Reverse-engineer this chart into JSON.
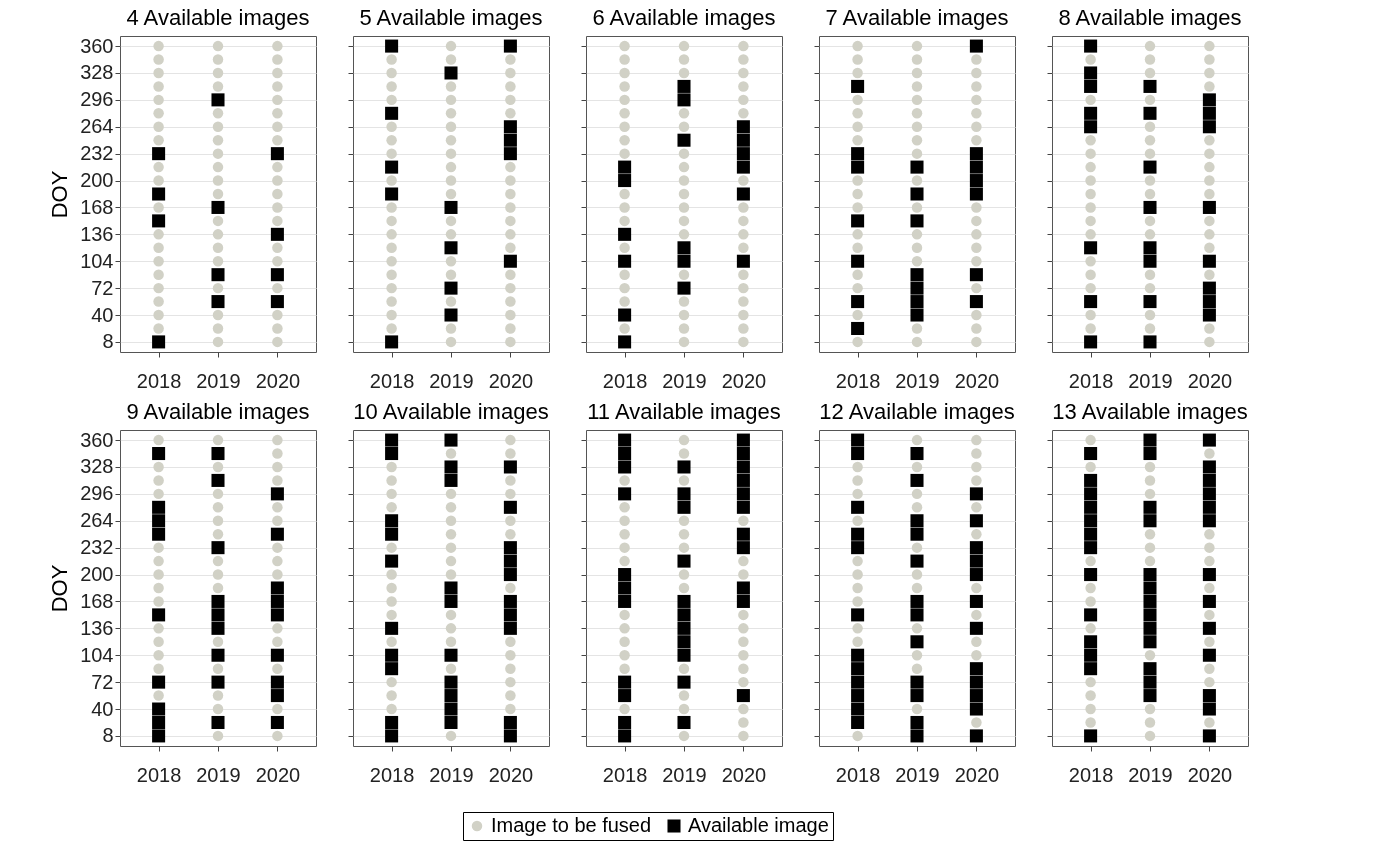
{
  "chart_data": [
    {
      "type": "scatter",
      "title": "4 Available images",
      "ylabel": "DOY",
      "legend": "bottom",
      "xlim": [
        2017.35,
        2020.65
      ],
      "xticks": [
        2018,
        2019,
        2020
      ],
      "ylim": [
        -4,
        372
      ],
      "yticks": [
        8,
        40,
        72,
        104,
        136,
        168,
        200,
        232,
        264,
        296,
        328,
        360
      ],
      "grid": "y",
      "series": [
        {
          "name": "Image to be fused",
          "color": "#d1d1c6",
          "marker": "circle",
          "x": [
            2018,
            2018,
            2018,
            2018,
            2018,
            2018,
            2018,
            2018,
            2018,
            2018,
            2018,
            2018,
            2018,
            2018,
            2018,
            2018,
            2018,
            2018,
            2018,
            2019,
            2019,
            2019,
            2019,
            2019,
            2019,
            2019,
            2019,
            2019,
            2019,
            2019,
            2019,
            2019,
            2019,
            2019,
            2019,
            2019,
            2019,
            2019,
            2020,
            2020,
            2020,
            2020,
            2020,
            2020,
            2020,
            2020,
            2020,
            2020,
            2020,
            2020,
            2020,
            2020,
            2020,
            2020,
            2020,
            2020,
            2020
          ],
          "values": [
            360,
            344,
            328,
            312,
            296,
            280,
            264,
            248,
            216,
            200,
            168,
            136,
            120,
            104,
            88,
            72,
            56,
            40,
            24,
            360,
            344,
            328,
            312,
            280,
            264,
            248,
            232,
            216,
            200,
            184,
            152,
            136,
            120,
            104,
            72,
            40,
            24,
            8,
            360,
            344,
            328,
            312,
            296,
            280,
            264,
            248,
            216,
            200,
            184,
            168,
            152,
            120,
            104,
            72,
            40,
            24,
            8
          ]
        },
        {
          "name": "Available image",
          "color": "#000000",
          "marker": "square",
          "x": [
            2018,
            2018,
            2018,
            2018,
            2019,
            2019,
            2019,
            2019,
            2020,
            2020,
            2020,
            2020
          ],
          "values": [
            232,
            184,
            152,
            8,
            296,
            168,
            88,
            56,
            232,
            136,
            88,
            56
          ]
        }
      ]
    },
    {
      "type": "scatter",
      "title": "5 Available images",
      "tick_labels": "x",
      "legend": "bottom",
      "xlim": [
        2017.35,
        2020.65
      ],
      "xticks": [
        2018,
        2019,
        2020
      ],
      "ylim": [
        -4,
        372
      ],
      "yticks": [
        8,
        40,
        72,
        104,
        136,
        168,
        200,
        232,
        264,
        296,
        328,
        360
      ],
      "grid": "y",
      "series": [
        {
          "name": "Image to be fused",
          "color": "#d1d1c6",
          "marker": "circle",
          "x": [
            2018,
            2018,
            2018,
            2018,
            2018,
            2018,
            2018,
            2018,
            2018,
            2018,
            2018,
            2018,
            2018,
            2018,
            2018,
            2018,
            2018,
            2018,
            2019,
            2019,
            2019,
            2019,
            2019,
            2019,
            2019,
            2019,
            2019,
            2019,
            2019,
            2019,
            2019,
            2019,
            2019,
            2019,
            2019,
            2019,
            2020,
            2020,
            2020,
            2020,
            2020,
            2020,
            2020,
            2020,
            2020,
            2020,
            2020,
            2020,
            2020,
            2020,
            2020,
            2020,
            2020,
            2020
          ],
          "values": [
            344,
            328,
            312,
            296,
            264,
            248,
            232,
            200,
            168,
            152,
            136,
            120,
            104,
            88,
            72,
            56,
            40,
            24,
            360,
            344,
            312,
            296,
            280,
            264,
            248,
            232,
            216,
            200,
            184,
            152,
            136,
            104,
            88,
            56,
            24,
            8,
            344,
            328,
            312,
            296,
            280,
            216,
            200,
            184,
            168,
            152,
            136,
            120,
            88,
            72,
            56,
            40,
            24,
            8
          ]
        },
        {
          "name": "Available image",
          "color": "#000000",
          "marker": "square",
          "x": [
            2018,
            2018,
            2018,
            2018,
            2018,
            2019,
            2019,
            2019,
            2019,
            2019,
            2020,
            2020,
            2020,
            2020,
            2020
          ],
          "values": [
            360,
            280,
            216,
            184,
            8,
            328,
            168,
            120,
            72,
            40,
            360,
            264,
            248,
            232,
            104
          ]
        }
      ]
    },
    {
      "type": "scatter",
      "title": "6 Available images",
      "tick_labels": "x",
      "legend": "bottom",
      "xlim": [
        2017.35,
        2020.65
      ],
      "xticks": [
        2018,
        2019,
        2020
      ],
      "ylim": [
        -4,
        372
      ],
      "yticks": [
        8,
        40,
        72,
        104,
        136,
        168,
        200,
        232,
        264,
        296,
        328,
        360
      ],
      "grid": "y",
      "series": [
        {
          "name": "Image to be fused",
          "color": "#d1d1c6",
          "marker": "circle",
          "x": [
            2018,
            2018,
            2018,
            2018,
            2018,
            2018,
            2018,
            2018,
            2018,
            2018,
            2018,
            2018,
            2018,
            2018,
            2018,
            2018,
            2018,
            2019,
            2019,
            2019,
            2019,
            2019,
            2019,
            2019,
            2019,
            2019,
            2019,
            2019,
            2019,
            2019,
            2019,
            2019,
            2019,
            2019,
            2020,
            2020,
            2020,
            2020,
            2020,
            2020,
            2020,
            2020,
            2020,
            2020,
            2020,
            2020,
            2020,
            2020,
            2020,
            2020,
            2020
          ],
          "values": [
            360,
            344,
            328,
            312,
            296,
            280,
            264,
            248,
            232,
            184,
            168,
            152,
            120,
            88,
            72,
            56,
            24,
            360,
            344,
            328,
            280,
            264,
            232,
            216,
            200,
            184,
            168,
            152,
            136,
            88,
            56,
            40,
            24,
            8,
            360,
            344,
            328,
            312,
            296,
            280,
            200,
            168,
            152,
            136,
            120,
            88,
            72,
            56,
            40,
            24,
            8
          ]
        },
        {
          "name": "Available image",
          "color": "#000000",
          "marker": "square",
          "x": [
            2018,
            2018,
            2018,
            2018,
            2018,
            2018,
            2019,
            2019,
            2019,
            2019,
            2019,
            2019,
            2020,
            2020,
            2020,
            2020,
            2020,
            2020
          ],
          "values": [
            216,
            200,
            136,
            104,
            40,
            8,
            312,
            296,
            248,
            120,
            104,
            72,
            264,
            248,
            232,
            216,
            184,
            104
          ]
        }
      ]
    },
    {
      "type": "scatter",
      "title": "7 Available images",
      "tick_labels": "x",
      "legend": "bottom",
      "xlim": [
        2017.35,
        2020.65
      ],
      "xticks": [
        2018,
        2019,
        2020
      ],
      "ylim": [
        -4,
        372
      ],
      "yticks": [
        8,
        40,
        72,
        104,
        136,
        168,
        200,
        232,
        264,
        296,
        328,
        360
      ],
      "grid": "y",
      "series": [
        {
          "name": "Image to be fused",
          "color": "#d1d1c6",
          "marker": "circle",
          "x": [
            2018,
            2018,
            2018,
            2018,
            2018,
            2018,
            2018,
            2018,
            2018,
            2018,
            2018,
            2018,
            2018,
            2018,
            2018,
            2018,
            2019,
            2019,
            2019,
            2019,
            2019,
            2019,
            2019,
            2019,
            2019,
            2019,
            2019,
            2019,
            2019,
            2019,
            2019,
            2019,
            2020,
            2020,
            2020,
            2020,
            2020,
            2020,
            2020,
            2020,
            2020,
            2020,
            2020,
            2020,
            2020,
            2020,
            2020,
            2020
          ],
          "values": [
            360,
            344,
            328,
            296,
            280,
            264,
            248,
            200,
            184,
            168,
            136,
            120,
            88,
            72,
            40,
            8,
            360,
            344,
            328,
            312,
            296,
            280,
            264,
            248,
            232,
            200,
            168,
            136,
            120,
            104,
            24,
            8,
            344,
            328,
            312,
            296,
            280,
            264,
            248,
            168,
            152,
            136,
            120,
            104,
            72,
            40,
            24,
            8
          ]
        },
        {
          "name": "Available image",
          "color": "#000000",
          "marker": "square",
          "x": [
            2018,
            2018,
            2018,
            2018,
            2018,
            2018,
            2018,
            2019,
            2019,
            2019,
            2019,
            2019,
            2019,
            2019,
            2020,
            2020,
            2020,
            2020,
            2020,
            2020,
            2020
          ],
          "values": [
            312,
            232,
            216,
            152,
            104,
            56,
            24,
            216,
            184,
            152,
            88,
            72,
            56,
            40,
            360,
            232,
            216,
            200,
            184,
            88,
            56
          ]
        }
      ]
    },
    {
      "type": "scatter",
      "title": "8 Available images",
      "tick_labels": "x",
      "legend": "bottom",
      "xlim": [
        2017.35,
        2020.65
      ],
      "xticks": [
        2018,
        2019,
        2020
      ],
      "ylim": [
        -4,
        372
      ],
      "yticks": [
        8,
        40,
        72,
        104,
        136,
        168,
        200,
        232,
        264,
        296,
        328,
        360
      ],
      "grid": "y",
      "series": [
        {
          "name": "Image to be fused",
          "color": "#d1d1c6",
          "marker": "circle",
          "x": [
            2018,
            2018,
            2018,
            2018,
            2018,
            2018,
            2018,
            2018,
            2018,
            2018,
            2018,
            2018,
            2018,
            2018,
            2018,
            2019,
            2019,
            2019,
            2019,
            2019,
            2019,
            2019,
            2019,
            2019,
            2019,
            2019,
            2019,
            2019,
            2019,
            2019,
            2020,
            2020,
            2020,
            2020,
            2020,
            2020,
            2020,
            2020,
            2020,
            2020,
            2020,
            2020,
            2020,
            2020,
            2020
          ],
          "values": [
            344,
            296,
            248,
            232,
            216,
            200,
            184,
            168,
            152,
            136,
            104,
            88,
            72,
            40,
            24,
            360,
            344,
            328,
            296,
            264,
            248,
            232,
            200,
            184,
            152,
            136,
            88,
            72,
            40,
            24,
            360,
            344,
            328,
            312,
            248,
            232,
            216,
            200,
            184,
            152,
            136,
            120,
            88,
            24,
            8
          ]
        },
        {
          "name": "Available image",
          "color": "#000000",
          "marker": "square",
          "x": [
            2018,
            2018,
            2018,
            2018,
            2018,
            2018,
            2018,
            2018,
            2019,
            2019,
            2019,
            2019,
            2019,
            2019,
            2019,
            2019,
            2020,
            2020,
            2020,
            2020,
            2020,
            2020,
            2020,
            2020
          ],
          "values": [
            360,
            328,
            312,
            280,
            264,
            120,
            56,
            8,
            312,
            280,
            216,
            168,
            120,
            104,
            56,
            8,
            296,
            280,
            264,
            168,
            104,
            72,
            56,
            40
          ]
        }
      ]
    },
    {
      "type": "scatter",
      "title": "9 Available images",
      "ylabel": "DOY",
      "legend": "bottom",
      "xlim": [
        2017.35,
        2020.65
      ],
      "xticks": [
        2018,
        2019,
        2020
      ],
      "ylim": [
        -4,
        372
      ],
      "yticks": [
        8,
        40,
        72,
        104,
        136,
        168,
        200,
        232,
        264,
        296,
        328,
        360
      ],
      "grid": "y",
      "series": [
        {
          "name": "Image to be fused",
          "color": "#d1d1c6",
          "marker": "circle",
          "x": [
            2018,
            2018,
            2018,
            2018,
            2018,
            2018,
            2018,
            2018,
            2018,
            2018,
            2018,
            2018,
            2018,
            2018,
            2019,
            2019,
            2019,
            2019,
            2019,
            2019,
            2019,
            2019,
            2019,
            2019,
            2019,
            2019,
            2019,
            2019,
            2020,
            2020,
            2020,
            2020,
            2020,
            2020,
            2020,
            2020,
            2020,
            2020,
            2020,
            2020,
            2020,
            2020
          ],
          "values": [
            360,
            328,
            312,
            296,
            232,
            216,
            200,
            184,
            168,
            136,
            120,
            104,
            88,
            56,
            360,
            328,
            296,
            280,
            264,
            248,
            216,
            200,
            184,
            120,
            88,
            56,
            40,
            8,
            360,
            344,
            328,
            312,
            280,
            264,
            232,
            216,
            200,
            136,
            120,
            88,
            40,
            8
          ]
        },
        {
          "name": "Available image",
          "color": "#000000",
          "marker": "square",
          "x": [
            2018,
            2018,
            2018,
            2018,
            2018,
            2018,
            2018,
            2018,
            2018,
            2019,
            2019,
            2019,
            2019,
            2019,
            2019,
            2019,
            2019,
            2019,
            2020,
            2020,
            2020,
            2020,
            2020,
            2020,
            2020,
            2020,
            2020
          ],
          "values": [
            344,
            280,
            264,
            248,
            152,
            72,
            40,
            24,
            8,
            344,
            312,
            232,
            168,
            152,
            136,
            104,
            72,
            24,
            296,
            248,
            184,
            168,
            152,
            104,
            72,
            56,
            24
          ]
        }
      ]
    },
    {
      "type": "scatter",
      "title": "10 Available images",
      "tick_labels": "x",
      "legend": "bottom",
      "xlim": [
        2017.35,
        2020.65
      ],
      "xticks": [
        2018,
        2019,
        2020
      ],
      "ylim": [
        -4,
        372
      ],
      "yticks": [
        8,
        40,
        72,
        104,
        136,
        168,
        200,
        232,
        264,
        296,
        328,
        360
      ],
      "grid": "y",
      "series": [
        {
          "name": "Image to be fused",
          "color": "#d1d1c6",
          "marker": "circle",
          "x": [
            2018,
            2018,
            2018,
            2018,
            2018,
            2018,
            2018,
            2018,
            2018,
            2018,
            2018,
            2018,
            2018,
            2019,
            2019,
            2019,
            2019,
            2019,
            2019,
            2019,
            2019,
            2019,
            2019,
            2019,
            2019,
            2019,
            2020,
            2020,
            2020,
            2020,
            2020,
            2020,
            2020,
            2020,
            2020,
            2020,
            2020,
            2020,
            2020
          ],
          "values": [
            328,
            312,
            296,
            280,
            232,
            200,
            184,
            168,
            152,
            120,
            72,
            56,
            40,
            344,
            296,
            280,
            264,
            248,
            232,
            216,
            200,
            152,
            136,
            120,
            88,
            8,
            360,
            344,
            312,
            296,
            264,
            248,
            184,
            120,
            104,
            88,
            72,
            56,
            40
          ]
        },
        {
          "name": "Available image",
          "color": "#000000",
          "marker": "square",
          "x": [
            2018,
            2018,
            2018,
            2018,
            2018,
            2018,
            2018,
            2018,
            2018,
            2018,
            2019,
            2019,
            2019,
            2019,
            2019,
            2019,
            2019,
            2019,
            2019,
            2019,
            2020,
            2020,
            2020,
            2020,
            2020,
            2020,
            2020,
            2020,
            2020,
            2020
          ],
          "values": [
            360,
            344,
            264,
            248,
            216,
            136,
            104,
            88,
            24,
            8,
            360,
            328,
            312,
            184,
            168,
            104,
            72,
            56,
            40,
            24,
            328,
            280,
            232,
            216,
            200,
            168,
            152,
            136,
            24,
            8
          ]
        }
      ]
    },
    {
      "type": "scatter",
      "title": "11 Available images",
      "tick_labels": "x",
      "legend": "bottom",
      "xlim": [
        2017.35,
        2020.65
      ],
      "xticks": [
        2018,
        2019,
        2020
      ],
      "ylim": [
        -4,
        372
      ],
      "yticks": [
        8,
        40,
        72,
        104,
        136,
        168,
        200,
        232,
        264,
        296,
        328,
        360
      ],
      "grid": "y",
      "series": [
        {
          "name": "Image to be fused",
          "color": "#d1d1c6",
          "marker": "circle",
          "x": [
            2018,
            2018,
            2018,
            2018,
            2018,
            2018,
            2018,
            2018,
            2018,
            2018,
            2018,
            2018,
            2019,
            2019,
            2019,
            2019,
            2019,
            2019,
            2019,
            2019,
            2019,
            2019,
            2019,
            2019,
            2020,
            2020,
            2020,
            2020,
            2020,
            2020,
            2020,
            2020,
            2020,
            2020,
            2020,
            2020
          ],
          "values": [
            312,
            280,
            264,
            248,
            232,
            216,
            152,
            136,
            120,
            104,
            88,
            40,
            360,
            344,
            312,
            264,
            248,
            232,
            200,
            184,
            88,
            56,
            40,
            8,
            264,
            216,
            200,
            152,
            136,
            120,
            104,
            88,
            72,
            40,
            24,
            8
          ]
        },
        {
          "name": "Available image",
          "color": "#000000",
          "marker": "square",
          "x": [
            2018,
            2018,
            2018,
            2018,
            2018,
            2018,
            2018,
            2018,
            2018,
            2018,
            2018,
            2019,
            2019,
            2019,
            2019,
            2019,
            2019,
            2019,
            2019,
            2019,
            2019,
            2019,
            2020,
            2020,
            2020,
            2020,
            2020,
            2020,
            2020,
            2020,
            2020,
            2020,
            2020
          ],
          "values": [
            360,
            344,
            328,
            296,
            200,
            184,
            168,
            72,
            56,
            24,
            8,
            328,
            296,
            280,
            216,
            168,
            152,
            136,
            120,
            104,
            72,
            24,
            360,
            344,
            328,
            312,
            296,
            280,
            248,
            232,
            184,
            168,
            56
          ]
        }
      ]
    },
    {
      "type": "scatter",
      "title": "12 Available images",
      "tick_labels": "x",
      "legend": "bottom",
      "xlim": [
        2017.35,
        2020.65
      ],
      "xticks": [
        2018,
        2019,
        2020
      ],
      "ylim": [
        -4,
        372
      ],
      "yticks": [
        8,
        40,
        72,
        104,
        136,
        168,
        200,
        232,
        264,
        296,
        328,
        360
      ],
      "grid": "y",
      "series": [
        {
          "name": "Image to be fused",
          "color": "#d1d1c6",
          "marker": "circle",
          "x": [
            2018,
            2018,
            2018,
            2018,
            2018,
            2018,
            2018,
            2018,
            2018,
            2018,
            2018,
            2019,
            2019,
            2019,
            2019,
            2019,
            2019,
            2019,
            2019,
            2019,
            2019,
            2019,
            2020,
            2020,
            2020,
            2020,
            2020,
            2020,
            2020,
            2020,
            2020,
            2020,
            2020
          ],
          "values": [
            328,
            312,
            296,
            264,
            216,
            200,
            184,
            168,
            136,
            120,
            8,
            360,
            328,
            296,
            280,
            232,
            200,
            184,
            136,
            104,
            88,
            40,
            360,
            344,
            328,
            312,
            280,
            248,
            184,
            152,
            120,
            104,
            24
          ]
        },
        {
          "name": "Available image",
          "color": "#000000",
          "marker": "square",
          "x": [
            2018,
            2018,
            2018,
            2018,
            2018,
            2018,
            2018,
            2018,
            2018,
            2018,
            2018,
            2018,
            2019,
            2019,
            2019,
            2019,
            2019,
            2019,
            2019,
            2019,
            2019,
            2019,
            2019,
            2019,
            2020,
            2020,
            2020,
            2020,
            2020,
            2020,
            2020,
            2020,
            2020,
            2020,
            2020,
            2020
          ],
          "values": [
            360,
            344,
            280,
            248,
            232,
            152,
            104,
            88,
            72,
            56,
            40,
            24,
            344,
            312,
            264,
            248,
            216,
            168,
            152,
            120,
            72,
            56,
            24,
            8,
            296,
            264,
            232,
            216,
            200,
            168,
            136,
            88,
            72,
            56,
            40,
            8
          ]
        }
      ]
    },
    {
      "type": "scatter",
      "title": "13 Available images",
      "tick_labels": "x",
      "legend": "bottom",
      "xlim": [
        2017.35,
        2020.65
      ],
      "xticks": [
        2018,
        2019,
        2020
      ],
      "ylim": [
        -4,
        372
      ],
      "yticks": [
        8,
        40,
        72,
        104,
        136,
        168,
        200,
        232,
        264,
        296,
        328,
        360
      ],
      "grid": "y",
      "series": [
        {
          "name": "Image to be fused",
          "color": "#d1d1c6",
          "marker": "circle",
          "x": [
            2018,
            2018,
            2018,
            2018,
            2018,
            2018,
            2018,
            2018,
            2018,
            2018,
            2019,
            2019,
            2019,
            2019,
            2019,
            2019,
            2019,
            2019,
            2019,
            2019,
            2020,
            2020,
            2020,
            2020,
            2020,
            2020,
            2020,
            2020,
            2020,
            2020
          ],
          "values": [
            360,
            328,
            216,
            184,
            168,
            136,
            72,
            56,
            40,
            24,
            328,
            312,
            296,
            248,
            232,
            216,
            104,
            40,
            24,
            8,
            344,
            248,
            232,
            216,
            184,
            152,
            120,
            88,
            72,
            24
          ]
        },
        {
          "name": "Available image",
          "color": "#000000",
          "marker": "square",
          "x": [
            2018,
            2018,
            2018,
            2018,
            2018,
            2018,
            2018,
            2018,
            2018,
            2018,
            2018,
            2018,
            2018,
            2019,
            2019,
            2019,
            2019,
            2019,
            2019,
            2019,
            2019,
            2019,
            2019,
            2019,
            2019,
            2019,
            2020,
            2020,
            2020,
            2020,
            2020,
            2020,
            2020,
            2020,
            2020,
            2020,
            2020,
            2020,
            2020
          ],
          "values": [
            344,
            312,
            296,
            280,
            264,
            248,
            232,
            200,
            152,
            120,
            104,
            88,
            8,
            360,
            344,
            280,
            264,
            200,
            184,
            168,
            152,
            136,
            120,
            88,
            72,
            56,
            360,
            328,
            312,
            296,
            280,
            264,
            200,
            168,
            136,
            104,
            56,
            40,
            8
          ]
        }
      ]
    }
  ]
}
